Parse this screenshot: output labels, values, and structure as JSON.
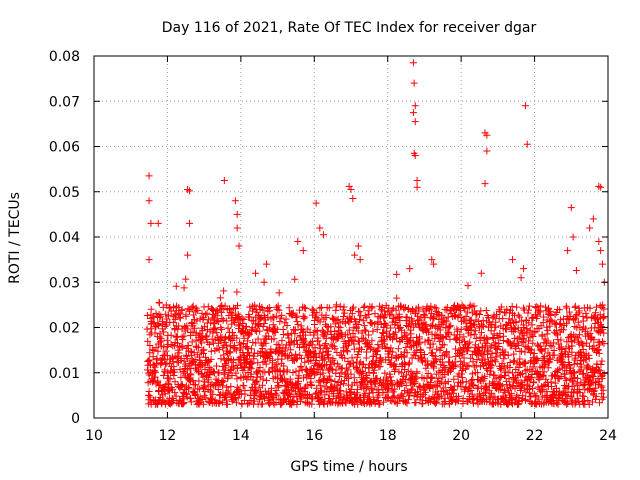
{
  "chart_data": {
    "type": "scatter",
    "title": "Day 116 of 2021, Rate Of TEC Index for receiver dgar",
    "xlabel": "GPS time / hours",
    "ylabel": "ROTI / TECUs",
    "xlim": [
      10,
      24
    ],
    "ylim": [
      0,
      0.08
    ],
    "x_ticks": [
      "10",
      "12",
      "14",
      "16",
      "18",
      "20",
      "22",
      "24"
    ],
    "y_ticks": [
      "0",
      "0.01",
      "0.02",
      "0.03",
      "0.04",
      "0.05",
      "0.06",
      "0.07",
      "0.08"
    ],
    "grid": true,
    "marker": "+",
    "marker_color": "#ff0000",
    "observation_window": [
      11.45,
      23.9
    ],
    "typical_range": [
      0.003,
      0.025
    ],
    "notable_points": [
      {
        "x": 11.5,
        "y": 0.0535
      },
      {
        "x": 11.5,
        "y": 0.048
      },
      {
        "x": 11.55,
        "y": 0.043
      },
      {
        "x": 11.5,
        "y": 0.035
      },
      {
        "x": 11.75,
        "y": 0.043
      },
      {
        "x": 12.55,
        "y": 0.0505
      },
      {
        "x": 12.6,
        "y": 0.0502
      },
      {
        "x": 12.6,
        "y": 0.043
      },
      {
        "x": 12.55,
        "y": 0.036
      },
      {
        "x": 13.55,
        "y": 0.0525
      },
      {
        "x": 13.85,
        "y": 0.048
      },
      {
        "x": 13.9,
        "y": 0.045
      },
      {
        "x": 13.9,
        "y": 0.042
      },
      {
        "x": 13.95,
        "y": 0.038
      },
      {
        "x": 14.7,
        "y": 0.034
      },
      {
        "x": 14.4,
        "y": 0.032
      },
      {
        "x": 15.55,
        "y": 0.039
      },
      {
        "x": 15.7,
        "y": 0.037
      },
      {
        "x": 16.05,
        "y": 0.0475
      },
      {
        "x": 16.15,
        "y": 0.042
      },
      {
        "x": 16.25,
        "y": 0.0405
      },
      {
        "x": 16.95,
        "y": 0.0512
      },
      {
        "x": 17.0,
        "y": 0.0505
      },
      {
        "x": 17.05,
        "y": 0.0485
      },
      {
        "x": 17.2,
        "y": 0.038
      },
      {
        "x": 17.25,
        "y": 0.035
      },
      {
        "x": 17.1,
        "y": 0.036
      },
      {
        "x": 18.7,
        "y": 0.0785
      },
      {
        "x": 18.72,
        "y": 0.074
      },
      {
        "x": 18.75,
        "y": 0.069
      },
      {
        "x": 18.7,
        "y": 0.0675
      },
      {
        "x": 18.75,
        "y": 0.0655
      },
      {
        "x": 18.72,
        "y": 0.0585
      },
      {
        "x": 18.75,
        "y": 0.058
      },
      {
        "x": 18.8,
        "y": 0.0525
      },
      {
        "x": 18.8,
        "y": 0.051
      },
      {
        "x": 18.6,
        "y": 0.033
      },
      {
        "x": 19.2,
        "y": 0.035
      },
      {
        "x": 19.25,
        "y": 0.034
      },
      {
        "x": 20.65,
        "y": 0.063
      },
      {
        "x": 20.7,
        "y": 0.0625
      },
      {
        "x": 20.7,
        "y": 0.059
      },
      {
        "x": 20.65,
        "y": 0.0518
      },
      {
        "x": 20.55,
        "y": 0.032
      },
      {
        "x": 21.75,
        "y": 0.069
      },
      {
        "x": 21.8,
        "y": 0.0605
      },
      {
        "x": 21.4,
        "y": 0.035
      },
      {
        "x": 21.7,
        "y": 0.033
      },
      {
        "x": 22.9,
        "y": 0.037
      },
      {
        "x": 23.0,
        "y": 0.0465
      },
      {
        "x": 23.05,
        "y": 0.04
      },
      {
        "x": 23.5,
        "y": 0.042
      },
      {
        "x": 23.6,
        "y": 0.044
      },
      {
        "x": 23.75,
        "y": 0.0512
      },
      {
        "x": 23.8,
        "y": 0.051
      },
      {
        "x": 23.75,
        "y": 0.039
      },
      {
        "x": 23.8,
        "y": 0.037
      },
      {
        "x": 23.85,
        "y": 0.034
      },
      {
        "x": 23.9,
        "y": 0.03
      }
    ]
  }
}
